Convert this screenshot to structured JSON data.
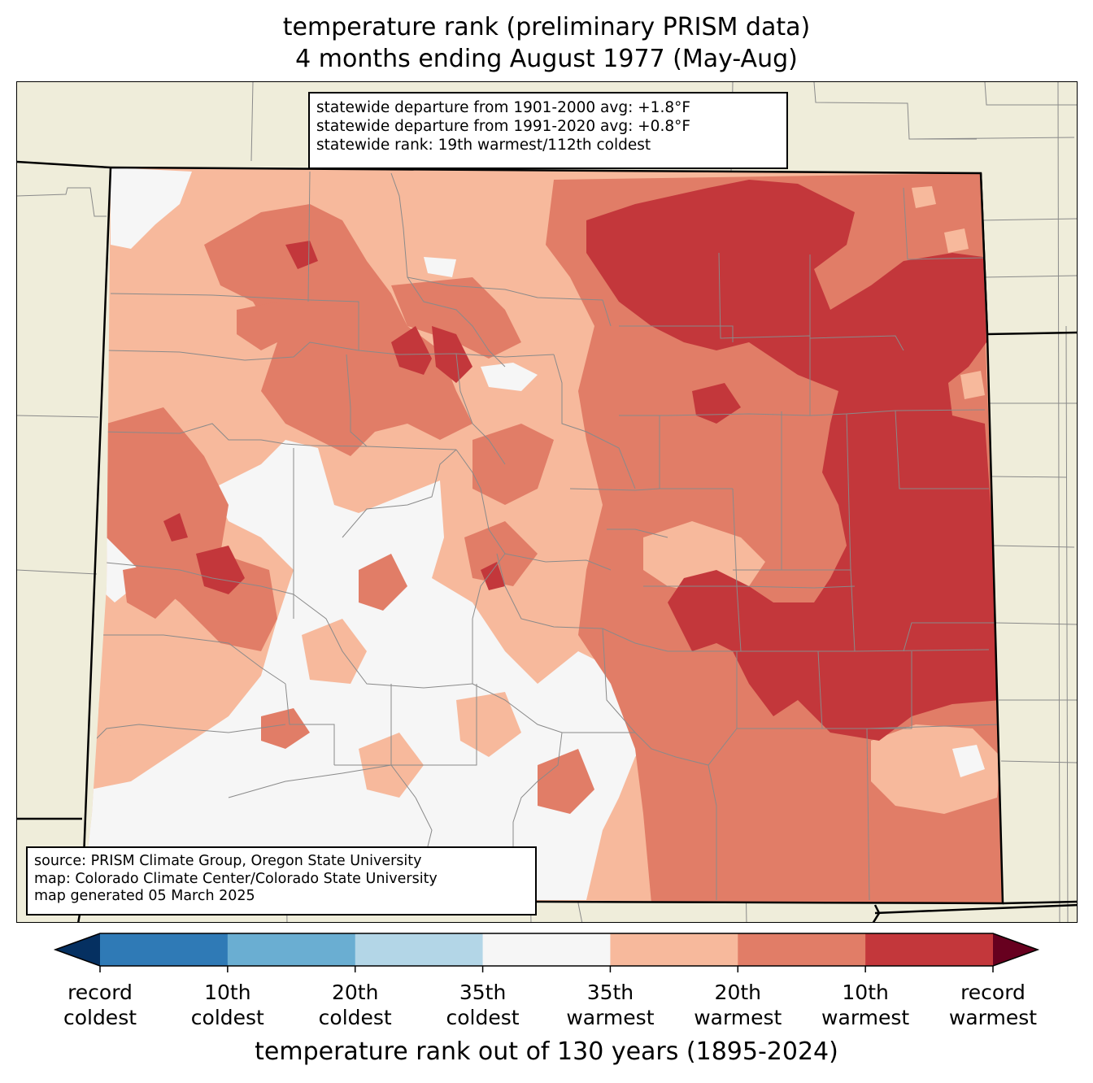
{
  "title": {
    "line1": "temperature rank (preliminary PRISM data)",
    "line2": "4 months ending August 1977 (May-Aug)"
  },
  "stats": {
    "line1": "statewide departure from 1901-2000 avg: +1.8°F",
    "line2": "statewide departure from 1991-2020 avg: +0.8°F",
    "line3": "statewide rank: 19th warmest/112th coldest"
  },
  "source": {
    "line1": "source: PRISM Climate Group, Oregon State University",
    "line2": "map: Colorado Climate Center/Colorado State University",
    "line3": "map generated 05 March 2025"
  },
  "colors": {
    "background": "#efedda",
    "record_coldest": "#053061",
    "rank_10_coldest": "#2f7ab6",
    "rank_20_coldest": "#6aaed2",
    "rank_35_coldest": "#b3d6e7",
    "near_normal": "#f6f6f6",
    "rank_35_warmest": "#f7b99c",
    "rank_20_warmest": "#e17d67",
    "rank_10_warmest": "#c3373b",
    "record_warmest": "#67001f"
  },
  "colorbar": {
    "title": "temperature rank out of 130 years (1895-2024)",
    "labels": [
      {
        "line1": "record",
        "line2": "coldest"
      },
      {
        "line1": "10th",
        "line2": "coldest"
      },
      {
        "line1": "20th",
        "line2": "coldest"
      },
      {
        "line1": "35th",
        "line2": "coldest"
      },
      {
        "line1": "35th",
        "line2": "warmest"
      },
      {
        "line1": "20th",
        "line2": "warmest"
      },
      {
        "line1": "10th",
        "line2": "warmest"
      },
      {
        "line1": "record",
        "line2": "warmest"
      }
    ],
    "segment_colors": [
      "#2f7ab6",
      "#6aaed2",
      "#b3d6e7",
      "#f6f6f6",
      "#f7b99c",
      "#e17d67",
      "#c3373b"
    ],
    "low_extend_color": "#053061",
    "high_extend_color": "#67001f"
  }
}
